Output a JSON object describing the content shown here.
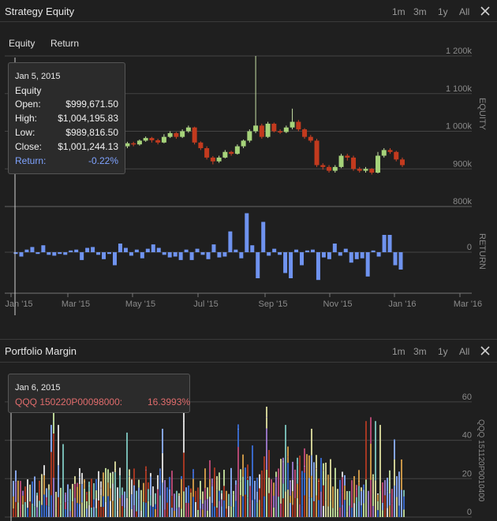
{
  "colors": {
    "background": "#1f1f1f",
    "up": "#a6d37a",
    "down": "#c23a1e",
    "bar": "#6f93ef",
    "grid": "#444444",
    "accent": "#7fa3ff",
    "highlight": "#e06c6c"
  },
  "top_panel": {
    "title": "Strategy Equity",
    "ranges": [
      "1m",
      "3m",
      "1y",
      "All"
    ],
    "close_icon": "close-icon",
    "tabs": [
      "Equity",
      "Return"
    ],
    "tooltip": {
      "date": "Jan 5, 2015",
      "series": "Equity",
      "rows": [
        {
          "label": "Open:",
          "value": "$999,671.50"
        },
        {
          "label": "High:",
          "value": "$1,004,195.83"
        },
        {
          "label": "Low:",
          "value": "$989,816.50"
        },
        {
          "label": "Close:",
          "value": "$1,001,244.13"
        }
      ],
      "return_label": "Return:",
      "return_value": "-0.22%"
    }
  },
  "bottom_panel": {
    "title": "Portfolio Margin",
    "ranges": [
      "1m",
      "3m",
      "1y",
      "All"
    ],
    "close_icon": "close-icon",
    "tooltip": {
      "date": "Jan 6, 2015",
      "series_label": "QQQ 150220P00098000:",
      "series_value": "16.3993%"
    },
    "right_axis_label": "QQQ 151120P0010400"
  },
  "chart_data": [
    {
      "type": "candlestick",
      "ylabel": "EQUITY",
      "y_ticks": [
        "1 200k",
        "1 100k",
        "1 000k",
        "900k",
        "800k"
      ],
      "y_tick_values": [
        1200000,
        1100000,
        1000000,
        900000,
        800000
      ],
      "ylim": [
        800000,
        1200000
      ],
      "x_ticks": [
        "Jan '15",
        "Mar '15",
        "May '15",
        "Jul '15",
        "Sep '15",
        "Nov '15",
        "Jan '16",
        "Mar '16"
      ],
      "candles": [
        [
          1000000,
          995000,
          1004000,
          990000
        ],
        [
          995000,
          990000,
          998000,
          985000
        ],
        [
          990000,
          980000,
          995000,
          975000
        ],
        [
          980000,
          970000,
          985000,
          965000
        ],
        [
          970000,
          975000,
          978000,
          962000
        ],
        [
          975000,
          965000,
          980000,
          960000
        ],
        [
          965000,
          960000,
          970000,
          955000
        ],
        [
          960000,
          972000,
          975000,
          957000
        ],
        [
          972000,
          965000,
          976000,
          960000
        ],
        [
          965000,
          958000,
          968000,
          952000
        ],
        [
          958000,
          962000,
          966000,
          955000
        ],
        [
          962000,
          955000,
          965000,
          950000
        ],
        [
          955000,
          960000,
          963000,
          952000
        ],
        [
          960000,
          968000,
          972000,
          957000
        ],
        [
          968000,
          975000,
          980000,
          965000
        ],
        [
          975000,
          985000,
          990000,
          972000
        ],
        [
          985000,
          978000,
          992000,
          975000
        ],
        [
          978000,
          960000,
          980000,
          955000
        ],
        [
          960000,
          968000,
          972000,
          955000
        ],
        [
          968000,
          965000,
          972000,
          960000
        ],
        [
          965000,
          975000,
          978000,
          962000
        ],
        [
          975000,
          982000,
          986000,
          972000
        ],
        [
          982000,
          976000,
          985000,
          970000
        ],
        [
          976000,
          970000,
          980000,
          965000
        ],
        [
          970000,
          985000,
          992000,
          968000
        ],
        [
          985000,
          995000,
          1000000,
          982000
        ],
        [
          995000,
          985000,
          998000,
          980000
        ],
        [
          985000,
          1000000,
          1005000,
          982000
        ],
        [
          1000000,
          1010000,
          1015000,
          996000
        ],
        [
          1010000,
          970000,
          1012000,
          965000
        ],
        [
          970000,
          955000,
          973000,
          950000
        ],
        [
          955000,
          930000,
          960000,
          925000
        ],
        [
          930000,
          920000,
          934000,
          912000
        ],
        [
          920000,
          930000,
          935000,
          916000
        ],
        [
          930000,
          945000,
          950000,
          928000
        ],
        [
          945000,
          940000,
          948000,
          935000
        ],
        [
          940000,
          960000,
          965000,
          938000
        ],
        [
          960000,
          975000,
          978000,
          955000
        ],
        [
          975000,
          1000000,
          1005000,
          970000
        ],
        [
          1000000,
          1015000,
          1200000,
          995000
        ],
        [
          1015000,
          985000,
          1020000,
          980000
        ],
        [
          985000,
          1020000,
          1025000,
          982000
        ],
        [
          1020000,
          1000000,
          1023000,
          997000
        ],
        [
          1000000,
          998000,
          1005000,
          993000
        ],
        [
          998000,
          1010000,
          1015000,
          995000
        ],
        [
          1010000,
          1025000,
          1060000,
          1005000
        ],
        [
          1025000,
          1005000,
          1030000,
          1000000
        ],
        [
          1005000,
          985000,
          1008000,
          980000
        ],
        [
          985000,
          975000,
          990000,
          970000
        ],
        [
          975000,
          910000,
          980000,
          905000
        ],
        [
          910000,
          905000,
          915000,
          898000
        ],
        [
          905000,
          895000,
          910000,
          890000
        ],
        [
          895000,
          905000,
          910000,
          890000
        ],
        [
          905000,
          935000,
          940000,
          902000
        ],
        [
          935000,
          930000,
          940000,
          922000
        ],
        [
          930000,
          900000,
          935000,
          895000
        ],
        [
          900000,
          895000,
          905000,
          890000
        ],
        [
          895000,
          900000,
          905000,
          890000
        ],
        [
          900000,
          890000,
          902000,
          885000
        ],
        [
          890000,
          935000,
          945000,
          888000
        ],
        [
          935000,
          950000,
          955000,
          930000
        ],
        [
          950000,
          945000,
          955000,
          940000
        ],
        [
          945000,
          925000,
          948000,
          920000
        ],
        [
          925000,
          910000,
          930000,
          905000
        ]
      ]
    },
    {
      "type": "bar",
      "ylabel": "RETURN",
      "y_ticks": [
        "0"
      ],
      "ylim": [
        -8,
        8
      ],
      "values": [
        -0.2,
        -0.5,
        0.3,
        0.6,
        -0.2,
        0.8,
        -0.3,
        -0.4,
        -0.2,
        -0.3,
        0.2,
        0.3,
        -0.9,
        0.5,
        0.6,
        -0.3,
        -0.8,
        -0.2,
        -1.5,
        1.0,
        0.5,
        -0.4,
        0.3,
        -0.7,
        0.4,
        0.9,
        0.5,
        -0.3,
        -0.6,
        -0.5,
        -0.9,
        0.3,
        -0.9,
        0.4,
        -0.3,
        -0.8,
        0.9,
        -0.6,
        -0.5,
        2.4,
        0.3,
        -0.7,
        4.5,
        0.8,
        -3.0,
        3.5,
        -0.4,
        0.4,
        -0.3,
        -2.4,
        -3.0,
        0.3,
        -1.5,
        0.2,
        0.3,
        -3.2,
        -0.6,
        -0.8,
        1.0,
        -0.4,
        0.4,
        -1.2,
        -0.8,
        -0.7,
        -2.8,
        0.2,
        -0.5,
        2.0,
        2.0,
        -1.5,
        -2.0
      ]
    },
    {
      "type": "bar",
      "stacked": true,
      "ylabel": "QQQ 151120P0010400",
      "y_ticks": [
        "60",
        "40",
        "20",
        "0"
      ],
      "y_tick_values": [
        60,
        40,
        20,
        0
      ],
      "ylim": [
        0,
        62
      ]
    }
  ]
}
